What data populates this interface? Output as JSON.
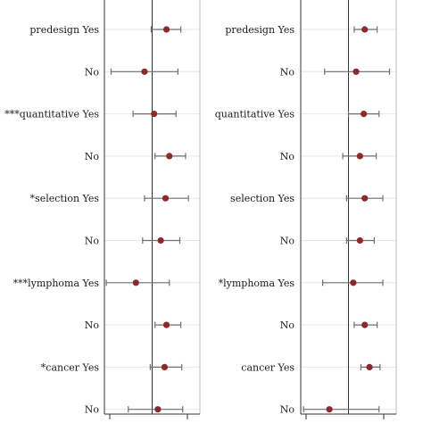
{
  "colors": {
    "point": "#8b2a2a",
    "whisker": "#6f6f6f",
    "axis": "#333333",
    "grid": "#e6e6e6",
    "background": "#ffffff"
  },
  "chart_data": [
    {
      "type": "scatter",
      "subtype": "forest-plot",
      "title": "",
      "xlabel": "",
      "xlim": [
        0,
        100
      ],
      "reference_line_x": 50,
      "grid": "horizontal",
      "rows": [
        {
          "label": "predesign Yes",
          "estimate": 65,
          "lower": 49,
          "upper": 80
        },
        {
          "label": "No",
          "estimate": 42,
          "lower": 7,
          "upper": 77
        },
        {
          "label": "***quantitative Yes",
          "estimate": 52,
          "lower": 30,
          "upper": 75
        },
        {
          "label": "No",
          "estimate": 68,
          "lower": 53,
          "upper": 85
        },
        {
          "label": "*selection Yes",
          "estimate": 64,
          "lower": 42,
          "upper": 88
        },
        {
          "label": "No",
          "estimate": 59,
          "lower": 40,
          "upper": 79
        },
        {
          "label": "***lymphoma Yes",
          "estimate": 33,
          "lower": 2,
          "upper": 68
        },
        {
          "label": "No",
          "estimate": 65,
          "lower": 53,
          "upper": 80
        },
        {
          "label": "*cancer Yes",
          "estimate": 63,
          "lower": 48,
          "upper": 81
        },
        {
          "label": "No",
          "estimate": 56,
          "lower": 25,
          "upper": 82
        }
      ]
    },
    {
      "type": "scatter",
      "subtype": "forest-plot",
      "title": "",
      "xlabel": "",
      "xlim": [
        0,
        100
      ],
      "reference_line_x": 50,
      "grid": "horizontal",
      "rows": [
        {
          "label": "predesign Yes",
          "estimate": 67,
          "lower": 56,
          "upper": 80
        },
        {
          "label": "No",
          "estimate": 58,
          "lower": 25,
          "upper": 93
        },
        {
          "label": "quantitative Yes",
          "estimate": 66,
          "lower": 50,
          "upper": 82
        },
        {
          "label": "No",
          "estimate": 62,
          "lower": 44,
          "upper": 79
        },
        {
          "label": "selection Yes",
          "estimate": 67,
          "lower": 48,
          "upper": 86
        },
        {
          "label": "No",
          "estimate": 62,
          "lower": 48,
          "upper": 77
        },
        {
          "label": "*lymphoma Yes",
          "estimate": 55,
          "lower": 23,
          "upper": 86
        },
        {
          "label": "No",
          "estimate": 67,
          "lower": 56,
          "upper": 80
        },
        {
          "label": "cancer Yes",
          "estimate": 72,
          "lower": 63,
          "upper": 83
        },
        {
          "label": "No",
          "estimate": 30,
          "lower": 3,
          "upper": 82
        }
      ]
    }
  ]
}
